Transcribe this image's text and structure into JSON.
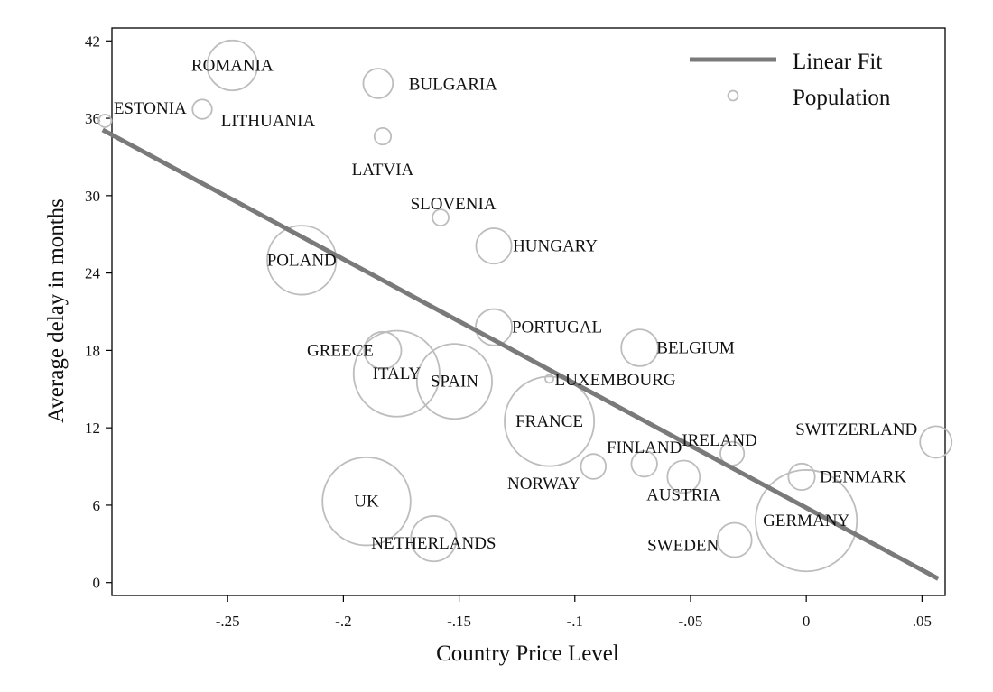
{
  "chart_data": {
    "type": "scatter",
    "xlabel": "Country Price Level",
    "ylabel": "Average delay in months",
    "xlim": [
      -0.3,
      0.06
    ],
    "ylim": [
      -1,
      43
    ],
    "x_ticks": [
      -0.25,
      -0.2,
      -0.15,
      -0.1,
      -0.05,
      0,
      0.05
    ],
    "x_tick_labels": [
      "-.25",
      "-.2",
      "-.15",
      "-.1",
      "-.05",
      "0",
      ".05"
    ],
    "y_ticks": [
      0,
      6,
      12,
      18,
      24,
      30,
      36,
      42
    ],
    "y_tick_labels": [
      "0",
      "6",
      "12",
      "18",
      "24",
      "30",
      "36",
      "42"
    ],
    "grid": false,
    "legend": {
      "position": "top-right",
      "entries": [
        "Linear Fit",
        "Population"
      ]
    },
    "linear_fit": {
      "name": "Linear Fit",
      "color": "#7a7a7a",
      "x": [
        -0.304,
        0.057
      ],
      "y": [
        35.1,
        0.3
      ]
    },
    "series": [
      {
        "name": "Population",
        "marker_color": "#bdbdbd",
        "points": [
          {
            "label": "ROMANIA",
            "x": -0.248,
            "y": 40.1,
            "size": 20
          },
          {
            "label": "BULGARIA",
            "x": -0.185,
            "y": 38.7,
            "size": 7
          },
          {
            "label": "ESTONIA",
            "x": -0.303,
            "y": 35.8,
            "size": 1.3
          },
          {
            "label": "LITHUANIA",
            "x": -0.261,
            "y": 36.7,
            "size": 3
          },
          {
            "label": "LATVIA",
            "x": -0.183,
            "y": 34.6,
            "size": 2.2
          },
          {
            "label": "SLOVENIA",
            "x": -0.158,
            "y": 28.3,
            "size": 2.1
          },
          {
            "label": "HUNGARY",
            "x": -0.135,
            "y": 26.1,
            "size": 10
          },
          {
            "label": "POLAND",
            "x": -0.218,
            "y": 25.0,
            "size": 38
          },
          {
            "label": "PORTUGAL",
            "x": -0.135,
            "y": 19.8,
            "size": 10.5
          },
          {
            "label": "BELGIUM",
            "x": -0.072,
            "y": 18.2,
            "size": 10.8
          },
          {
            "label": "GREECE",
            "x": -0.183,
            "y": 18.0,
            "size": 11
          },
          {
            "label": "ITALY",
            "x": -0.177,
            "y": 16.2,
            "size": 59
          },
          {
            "label": "SPAIN",
            "x": -0.152,
            "y": 15.6,
            "size": 45
          },
          {
            "label": "LUXEMBOURG",
            "x": -0.111,
            "y": 15.8,
            "size": 0.5
          },
          {
            "label": "FRANCE",
            "x": -0.111,
            "y": 12.5,
            "size": 64
          },
          {
            "label": "SWITZERLAND",
            "x": 0.056,
            "y": 10.9,
            "size": 8
          },
          {
            "label": "IRELAND",
            "x": -0.032,
            "y": 10.0,
            "size": 4.5
          },
          {
            "label": "FINLAND",
            "x": -0.07,
            "y": 9.2,
            "size": 5.3
          },
          {
            "label": "NORWAY",
            "x": -0.092,
            "y": 9.0,
            "size": 5
          },
          {
            "label": "DENMARK",
            "x": -0.002,
            "y": 8.2,
            "size": 5.6
          },
          {
            "label": "AUSTRIA",
            "x": -0.053,
            "y": 8.2,
            "size": 8.4
          },
          {
            "label": "UK",
            "x": -0.19,
            "y": 6.3,
            "size": 62
          },
          {
            "label": "GERMANY",
            "x": 0.0,
            "y": 4.8,
            "size": 82
          },
          {
            "label": "NETHERLANDS",
            "x": -0.161,
            "y": 3.4,
            "size": 16.5
          },
          {
            "label": "SWEDEN",
            "x": -0.031,
            "y": 3.3,
            "size": 9.4
          }
        ]
      }
    ]
  }
}
